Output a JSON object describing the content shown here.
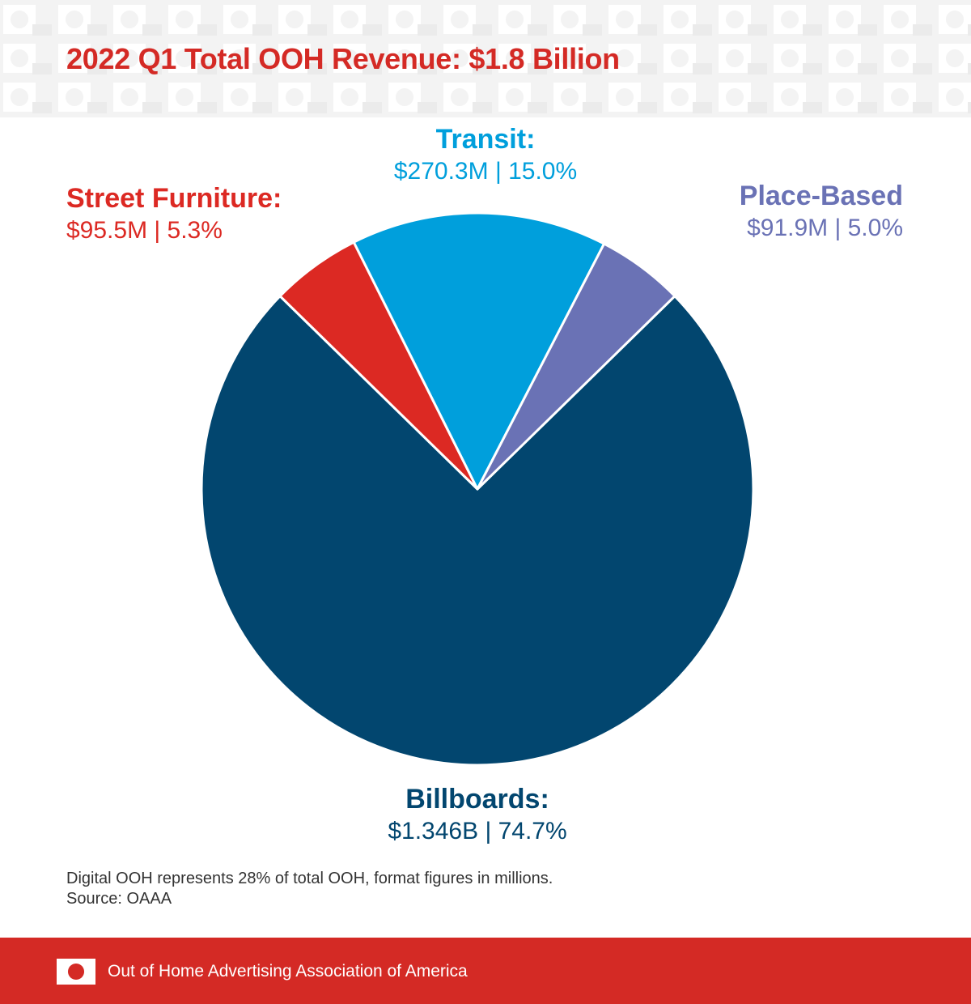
{
  "title": "2022 Q1 Total OOH Revenue: $1.8 Billion",
  "colors": {
    "title": "#d42a25",
    "billboards": "#02466f",
    "transit": "#009fdc",
    "street_furniture": "#dc2923",
    "place_based": "#6a72b5",
    "footer": "#d42a25",
    "header_band": "#f3f3f3"
  },
  "labels": {
    "transit": {
      "name": "Transit:",
      "value": "$270.3M  |  15.0%"
    },
    "street_furniture": {
      "name": "Street Furniture:",
      "value": "$95.5M  |  5.3%"
    },
    "place_based": {
      "name": "Place-Based",
      "value": "$91.9M  |  5.0%"
    },
    "billboards": {
      "name": "Billboards:",
      "value": "$1.346B  |  74.7%"
    }
  },
  "footnote": {
    "line1": "Digital OOH represents 28% of total OOH, format figures in millions.",
    "line2": "Source: OAAA"
  },
  "footer": {
    "logo_icon": "ooh-logo-icon",
    "text": "Out of Home Advertising Association of America"
  },
  "chart_data": {
    "type": "pie",
    "title": "2022 Q1 Total OOH Revenue: $1.8 Billion",
    "categories": [
      "Billboards",
      "Street Furniture",
      "Transit",
      "Place-Based"
    ],
    "values": [
      1346,
      95.5,
      270.3,
      91.9
    ],
    "percentages": [
      74.7,
      5.3,
      15.0,
      5.0
    ],
    "unit": "$M"
  }
}
